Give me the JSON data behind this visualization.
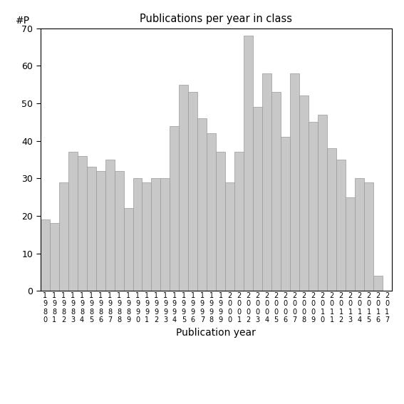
{
  "title": "Publications per year in class",
  "xlabel": "Publication year",
  "ylabel": "#P",
  "bar_color": "#c8c8c8",
  "edge_color": "#999999",
  "background_color": "#ffffff",
  "years": [
    1980,
    1981,
    1982,
    1983,
    1984,
    1985,
    1986,
    1987,
    1988,
    1989,
    1990,
    1991,
    1992,
    1993,
    1994,
    1995,
    1996,
    1997,
    1998,
    1999,
    2000,
    2001,
    2002,
    2003,
    2004,
    2005,
    2006,
    2007,
    2008,
    2009,
    2010,
    2011,
    2012,
    2013,
    2014,
    2015,
    2016,
    2017
  ],
  "values": [
    19,
    18,
    29,
    37,
    36,
    33,
    32,
    35,
    32,
    22,
    30,
    29,
    30,
    30,
    44,
    55,
    53,
    46,
    42,
    37,
    29,
    37,
    68,
    49,
    58,
    53,
    41,
    58,
    52,
    45,
    47,
    38,
    35,
    25,
    30,
    29,
    4,
    0
  ],
  "ylim": [
    0,
    70
  ],
  "yticks": [
    0,
    10,
    20,
    30,
    40,
    50,
    60,
    70
  ]
}
